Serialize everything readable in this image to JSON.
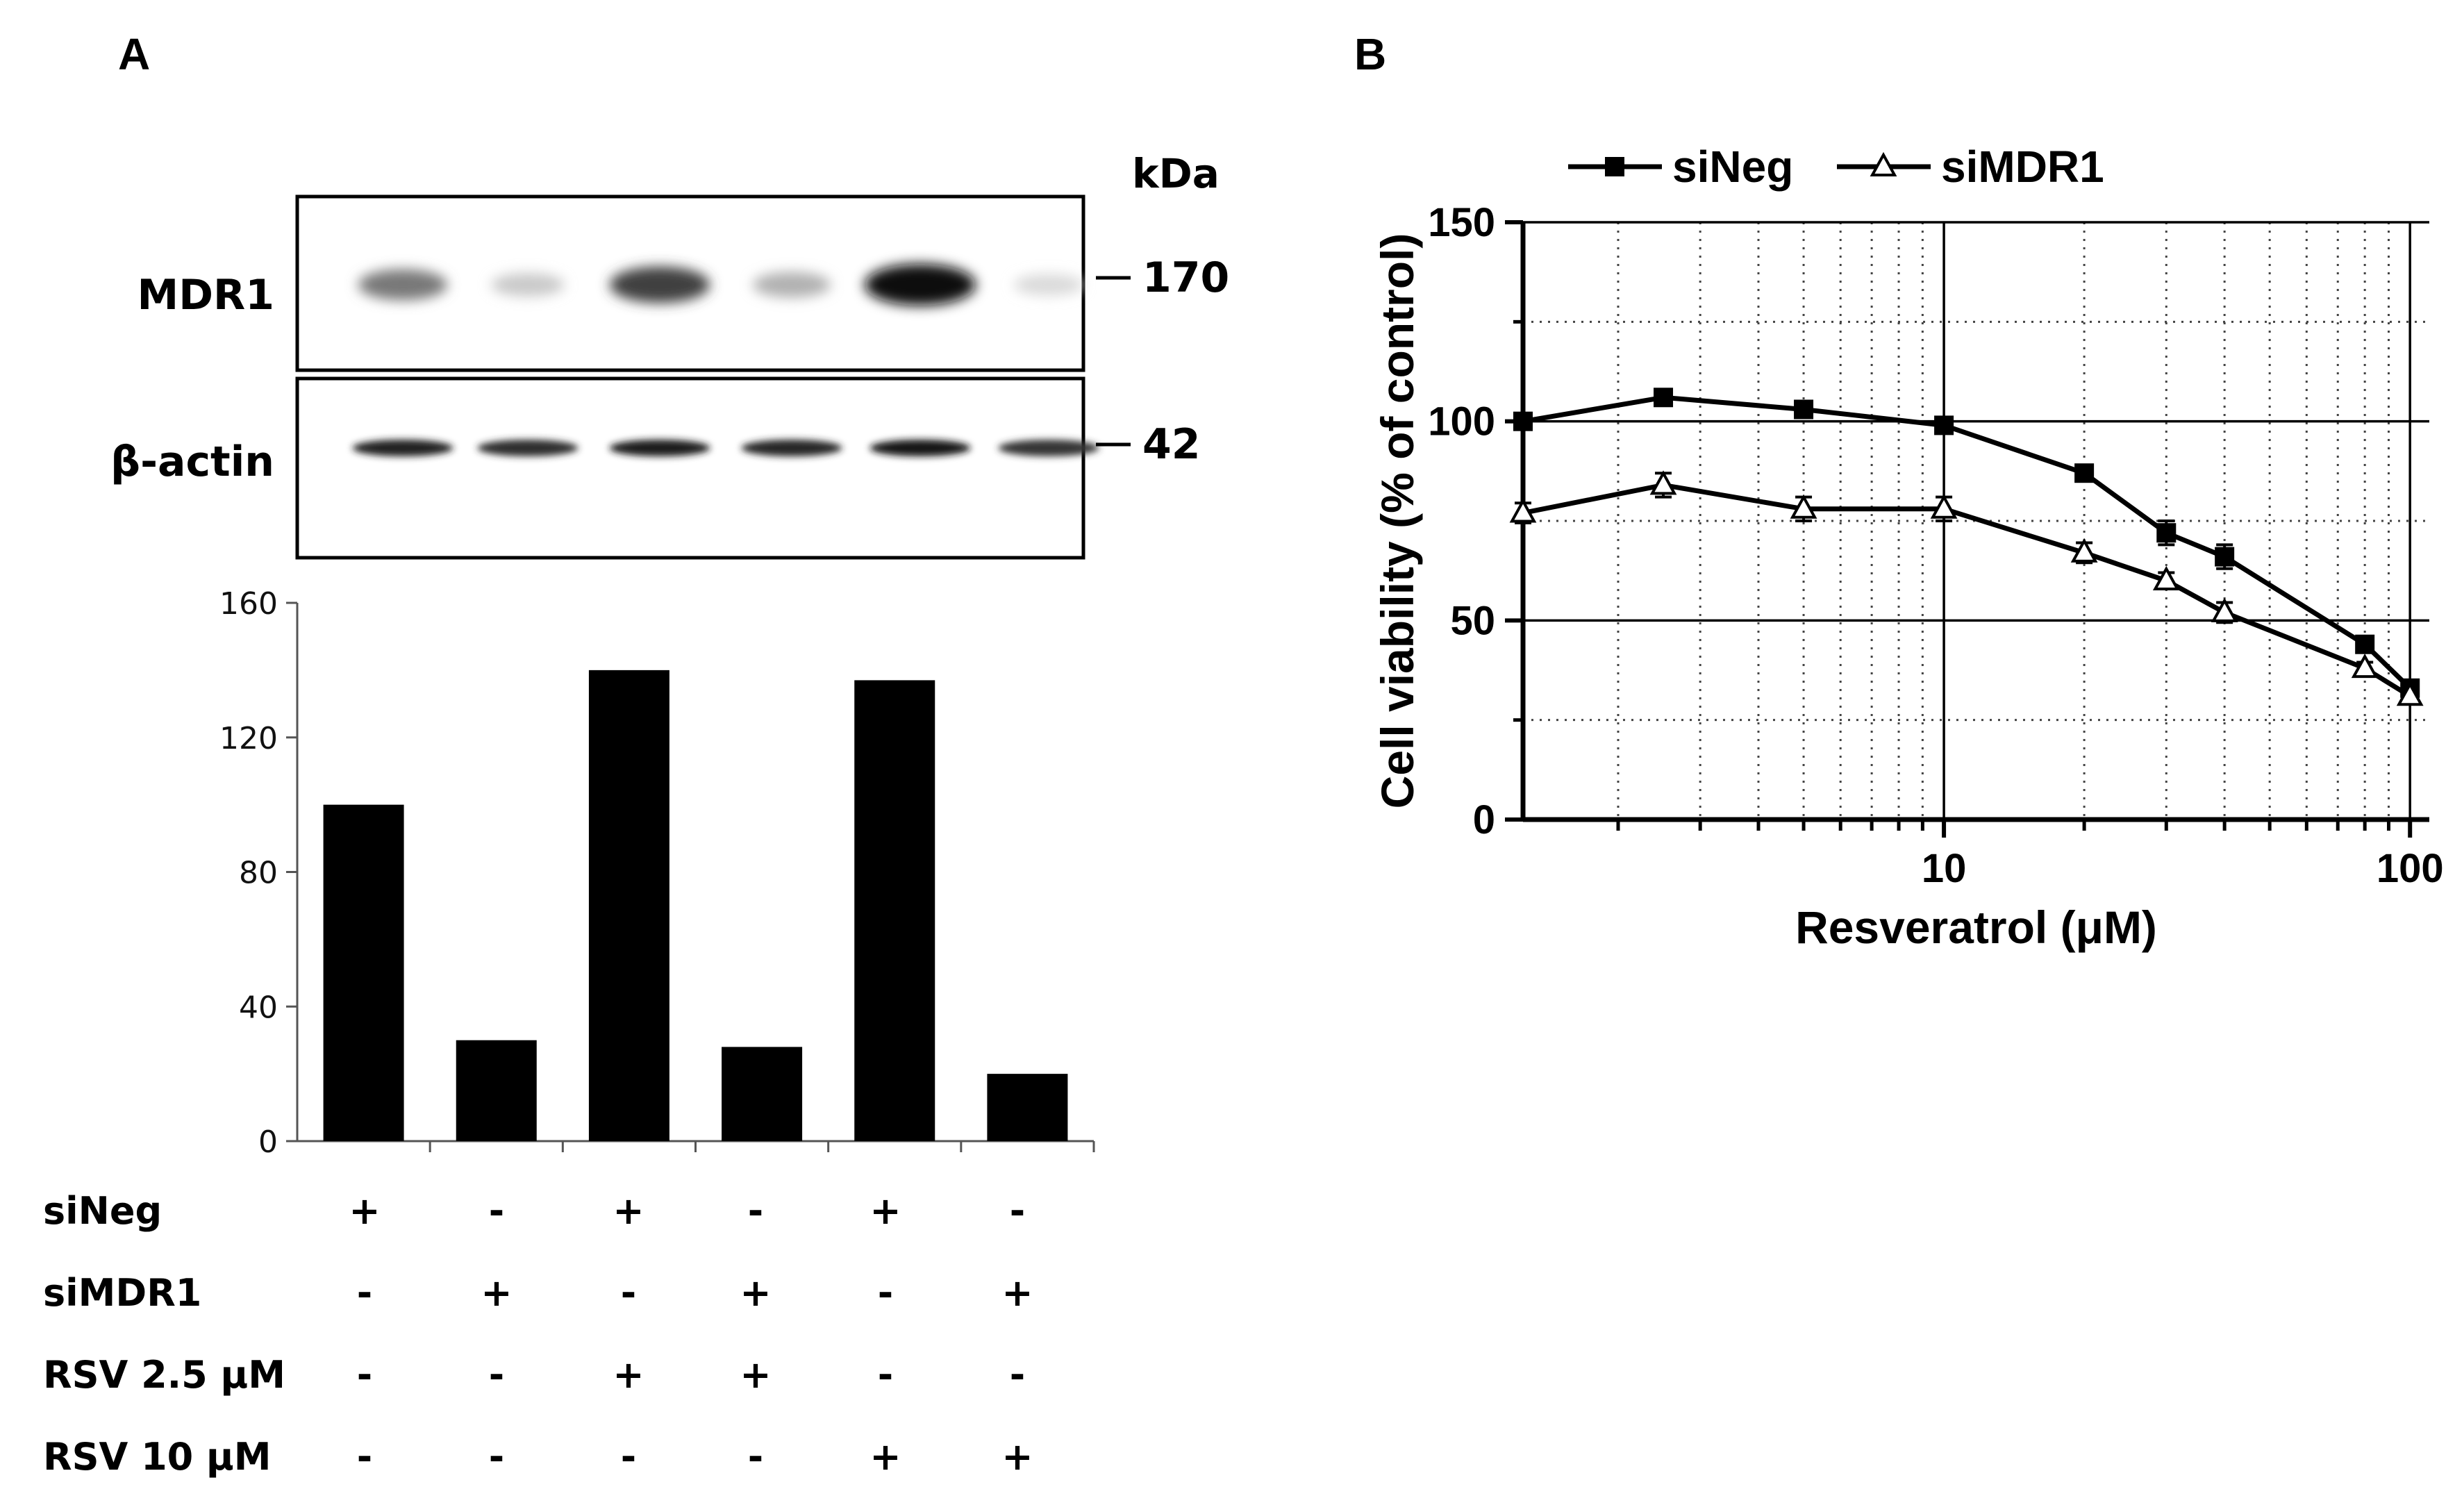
{
  "panel_a": {
    "label": "A",
    "blot": {
      "kda_label": "kDa",
      "rows": [
        {
          "name": "MDR1",
          "marker": "170",
          "band_intensity": [
            0.55,
            0.22,
            0.78,
            0.32,
            1.0,
            0.15
          ]
        },
        {
          "name": "β-actin",
          "marker": "42",
          "band_intensity": [
            0.9,
            0.85,
            0.92,
            0.88,
            0.95,
            0.82
          ]
        }
      ]
    },
    "treatments": [
      {
        "label": "siNeg",
        "signs": [
          "+",
          "-",
          "+",
          "-",
          "+",
          "-"
        ]
      },
      {
        "label": "siMDR1",
        "signs": [
          "-",
          "+",
          "-",
          "+",
          "-",
          "+"
        ]
      },
      {
        "label": "RSV 2.5 μM",
        "signs": [
          "-",
          "-",
          "+",
          "+",
          "-",
          "-"
        ]
      },
      {
        "label": "RSV 10 μM",
        "signs": [
          "-",
          "-",
          "-",
          "-",
          "+",
          "+"
        ]
      }
    ]
  },
  "panel_b": {
    "label": "B"
  },
  "chart_data": [
    {
      "type": "bar",
      "categories": [
        "",
        "",
        "",
        "",
        "",
        ""
      ],
      "values": [
        100,
        30,
        140,
        28,
        137,
        20
      ],
      "ylim": [
        0,
        160
      ],
      "yticks": [
        "0",
        "40",
        "80",
        "120",
        "160"
      ],
      "ytick_values": [
        0,
        40,
        80,
        120,
        160
      ],
      "bar_color": "#000000"
    },
    {
      "type": "line",
      "xscale": "log",
      "xlim": [
        1.25,
        110
      ],
      "ylim": [
        0,
        150
      ],
      "xlabel": "Resveratrol (μM)",
      "ylabel": "Cell viability (% of control)",
      "xticks": [
        "10",
        "100"
      ],
      "xtick_values": [
        10,
        100
      ],
      "yticks": [
        "0",
        "50",
        "100",
        "150"
      ],
      "ytick_values": [
        0,
        50,
        100,
        150
      ],
      "grid": true,
      "legend": "top",
      "series": [
        {
          "name": "siNeg",
          "marker": "square-filled",
          "x": [
            1.25,
            2.5,
            5,
            10,
            20,
            30,
            40,
            80,
            100
          ],
          "y": [
            100,
            106,
            103,
            99,
            87,
            72,
            66,
            44,
            33
          ],
          "err": [
            1,
            1,
            1,
            1,
            1.5,
            3,
            3,
            1.5,
            1.5
          ]
        },
        {
          "name": "siMDR1",
          "marker": "triangle-open",
          "x": [
            1.25,
            2.5,
            5,
            10,
            20,
            30,
            40,
            80,
            100
          ],
          "y": [
            77,
            84,
            78,
            78,
            67,
            60,
            52,
            38,
            31
          ],
          "err": [
            2.5,
            3,
            3,
            3,
            2.5,
            2,
            2.5,
            1.5,
            1.5
          ]
        }
      ]
    }
  ]
}
